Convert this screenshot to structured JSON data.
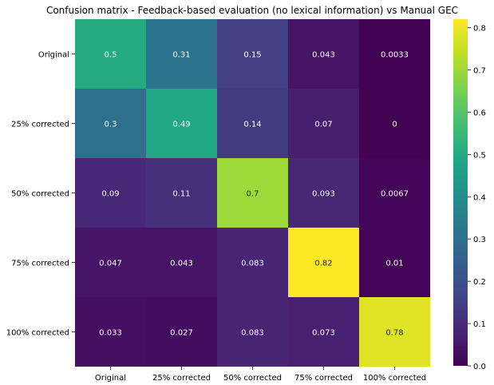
{
  "chart_data": {
    "type": "heatmap",
    "title": "Confusion matrix - Feedback-based evaluation (no lexical information) vs Manual GEC",
    "row_labels": [
      "Original",
      "25% corrected",
      "50% corrected",
      "75% corrected",
      "100% corrected"
    ],
    "col_labels": [
      "Original",
      "25% corrected",
      "50% corrected",
      "75% corrected",
      "100% corrected"
    ],
    "values": [
      [
        0.5,
        0.31,
        0.15,
        0.043,
        0.0033
      ],
      [
        0.3,
        0.49,
        0.14,
        0.07,
        0
      ],
      [
        0.09,
        0.11,
        0.7,
        0.093,
        0.0067
      ],
      [
        0.047,
        0.043,
        0.083,
        0.82,
        0.01
      ],
      [
        0.033,
        0.027,
        0.083,
        0.073,
        0.78
      ]
    ],
    "cell_text": [
      [
        "0.5",
        "0.31",
        "0.15",
        "0.043",
        "0.0033"
      ],
      [
        "0.3",
        "0.49",
        "0.14",
        "0.07",
        "0"
      ],
      [
        "0.09",
        "0.11",
        "0.7",
        "0.093",
        "0.0067"
      ],
      [
        "0.047",
        "0.043",
        "0.083",
        "0.82",
        "0.01"
      ],
      [
        "0.033",
        "0.027",
        "0.083",
        "0.073",
        "0.78"
      ]
    ],
    "colormap": "viridis",
    "vmin": 0,
    "vmax": 0.82,
    "colorbar_ticks": [
      0.0,
      0.1,
      0.2,
      0.3,
      0.4,
      0.5,
      0.6,
      0.7,
      0.8
    ],
    "colorbar_tick_labels": [
      "0.0",
      "0.1",
      "0.2",
      "0.3",
      "0.4",
      "0.5",
      "0.6",
      "0.7",
      "0.8"
    ]
  }
}
